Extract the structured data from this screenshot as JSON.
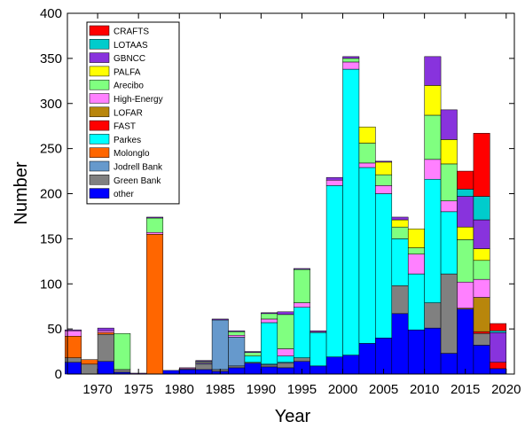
{
  "chart_data": {
    "type": "bar",
    "stacked": true,
    "xlabel": "Year",
    "ylabel": "Number",
    "xlim": [
      1966.3,
      2021
    ],
    "ylim": [
      0,
      400
    ],
    "bin_width": 2,
    "grid": false,
    "legend_position": "top-left",
    "x_ticks": [
      1970,
      1975,
      1980,
      1985,
      1990,
      1995,
      2000,
      2005,
      2010,
      2015,
      2020
    ],
    "y_ticks": [
      0,
      50,
      100,
      150,
      200,
      250,
      300,
      350,
      400
    ],
    "x": [
      1967,
      1969,
      1971,
      1973,
      1975,
      1977,
      1979,
      1981,
      1983,
      1985,
      1987,
      1989,
      1991,
      1993,
      1995,
      1997,
      1999,
      2001,
      2003,
      2005,
      2007,
      2009,
      2011,
      2013,
      2015,
      2017,
      2019
    ],
    "stack_order": [
      "other",
      "Green Bank",
      "Jodrell Bank",
      "Molonglo",
      "Parkes",
      "FAST",
      "LOFAR",
      "High-Energy",
      "Arecibo",
      "PALFA",
      "GBNCC",
      "LOTAAS",
      "CRAFTS"
    ],
    "legend_order": [
      "CRAFTS",
      "LOTAAS",
      "GBNCC",
      "PALFA",
      "Arecibo",
      "High-Energy",
      "LOFAR",
      "FAST",
      "Parkes",
      "Molonglo",
      "Jodrell Bank",
      "Green Bank",
      "other"
    ],
    "series": [
      {
        "name": "other",
        "color": "#0000ff",
        "values": [
          13,
          0,
          14,
          2,
          0,
          0,
          4,
          5,
          5,
          3,
          7,
          12,
          8,
          7,
          14,
          9,
          19,
          21,
          34,
          40,
          67,
          49,
          51,
          23,
          72,
          32,
          6
        ]
      },
      {
        "name": "Green Bank",
        "color": "#808080",
        "values": [
          5,
          11,
          30,
          3,
          0,
          0,
          0,
          1,
          6,
          2,
          2,
          1,
          2,
          5,
          4,
          0,
          0,
          0,
          0,
          0,
          31,
          0,
          28,
          88,
          0,
          13,
          0
        ]
      },
      {
        "name": "Jodrell Bank",
        "color": "#6699cc",
        "values": [
          0,
          0,
          0,
          0,
          0,
          0,
          0,
          0,
          1,
          55,
          32,
          0,
          1,
          1,
          0,
          0,
          0,
          0,
          0,
          0,
          0,
          0,
          0,
          0,
          0,
          0,
          0
        ]
      },
      {
        "name": "Molonglo",
        "color": "#ff6600",
        "values": [
          24,
          5,
          2,
          0,
          0,
          155,
          0,
          0,
          0,
          0,
          0,
          0,
          0,
          0,
          0,
          0,
          0,
          0,
          0,
          0,
          0,
          0,
          0,
          0,
          0,
          0,
          0
        ]
      },
      {
        "name": "Parkes",
        "color": "#00ffff",
        "values": [
          0,
          0,
          0,
          0,
          0,
          0,
          0,
          0,
          0,
          0,
          0,
          7,
          46,
          7,
          56,
          37,
          190,
          317,
          195,
          160,
          52,
          62,
          137,
          69,
          0,
          0,
          0
        ]
      },
      {
        "name": "FAST",
        "color": "#ff0000",
        "values": [
          0,
          0,
          0,
          0,
          0,
          0,
          0,
          0,
          0,
          0,
          0,
          0,
          0,
          0,
          0,
          0,
          0,
          0,
          0,
          0,
          0,
          0,
          0,
          0,
          0,
          2,
          7
        ]
      },
      {
        "name": "LOFAR",
        "color": "#b8860b",
        "values": [
          0,
          0,
          0,
          0,
          0,
          0,
          0,
          0,
          0,
          0,
          0,
          0,
          0,
          0,
          0,
          0,
          0,
          0,
          0,
          0,
          0,
          0,
          0,
          0,
          1,
          38,
          0
        ]
      },
      {
        "name": "High-Energy",
        "color": "#ff80ff",
        "values": [
          6,
          0,
          2,
          0,
          0,
          2,
          0,
          1,
          1,
          0,
          2,
          0,
          4,
          8,
          5,
          1,
          6,
          8,
          5,
          9,
          0,
          22,
          22,
          12,
          29,
          20,
          0
        ]
      },
      {
        "name": "Arecibo",
        "color": "#80ff80",
        "values": [
          0,
          0,
          0,
          40,
          0,
          16,
          0,
          0,
          1,
          0,
          4,
          4,
          6,
          38,
          37,
          0,
          0,
          4,
          22,
          12,
          13,
          7,
          49,
          41,
          47,
          21,
          0
        ]
      },
      {
        "name": "PALFA",
        "color": "#ffff00",
        "values": [
          0,
          0,
          0,
          0,
          0,
          0,
          0,
          0,
          0,
          0,
          0,
          0,
          0,
          0,
          0,
          0,
          0,
          0,
          18,
          14,
          8,
          21,
          33,
          27,
          14,
          13,
          0
        ]
      },
      {
        "name": "GBNCC",
        "color": "#8833dd",
        "values": [
          1,
          0,
          3,
          0,
          1,
          1,
          0,
          0,
          1,
          1,
          1,
          1,
          1,
          3,
          1,
          1,
          3,
          2,
          0,
          1,
          3,
          0,
          32,
          33,
          34,
          32,
          33
        ]
      },
      {
        "name": "LOTAAS",
        "color": "#00cccc",
        "values": [
          0,
          0,
          0,
          0,
          0,
          0,
          0,
          0,
          0,
          0,
          0,
          0,
          0,
          0,
          0,
          0,
          0,
          0,
          0,
          0,
          0,
          0,
          0,
          0,
          8,
          26,
          2
        ]
      },
      {
        "name": "CRAFTS",
        "color": "#ff0000",
        "values": [
          0,
          0,
          0,
          0,
          0,
          0,
          0,
          0,
          0,
          0,
          0,
          0,
          0,
          0,
          0,
          0,
          0,
          0,
          0,
          0,
          0,
          0,
          0,
          0,
          20,
          70,
          8
        ]
      }
    ]
  }
}
